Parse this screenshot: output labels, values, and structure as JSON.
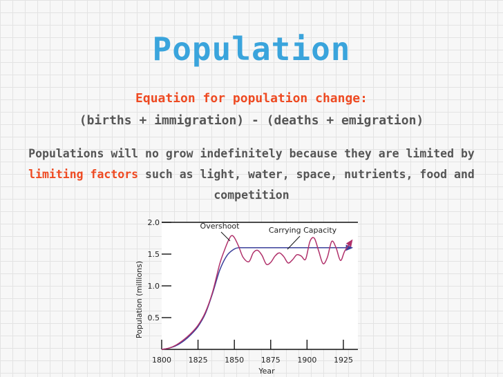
{
  "slide": {
    "title": "Population",
    "equation_heading": "Equation for population change:",
    "equation": "(births + immigration) - (deaths + emigration)",
    "paragraph_pre": "Populations will no grow indefinitely because they are limited by ",
    "paragraph_highlight": "limiting factors",
    "paragraph_post": " such as light, water, space, nutrients, food and competition"
  },
  "colors": {
    "title": "#3aa4dc",
    "highlight": "#ee4a22",
    "body_text": "#555555",
    "population_series": "#b0306a",
    "carrying_capacity_series": "#3a3f9a"
  },
  "chart_data": {
    "type": "line",
    "xlabel": "Year",
    "ylabel": "Population (millions)",
    "xlim": [
      1800,
      1935
    ],
    "ylim": [
      0,
      2.0
    ],
    "xticks": [
      "1800",
      "1825",
      "1850",
      "1875",
      "1900",
      "1925"
    ],
    "yticks": [
      "0.5",
      "1.0",
      "1.5",
      "2.0"
    ],
    "annotations": [
      "Overshoot",
      "Carrying Capacity"
    ],
    "series": [
      {
        "id": "population",
        "x": [
          1800,
          1805,
          1810,
          1815,
          1820,
          1825,
          1830,
          1835,
          1840,
          1843,
          1846,
          1848,
          1850,
          1853,
          1856,
          1860,
          1863,
          1866,
          1869,
          1872,
          1875,
          1878,
          1881,
          1884,
          1887,
          1890,
          1893,
          1896,
          1899,
          1902,
          1905,
          1908,
          1911,
          1914,
          1917,
          1920,
          1923,
          1926,
          1931
        ],
        "values": [
          0.0,
          0.02,
          0.07,
          0.15,
          0.25,
          0.38,
          0.58,
          0.9,
          1.35,
          1.55,
          1.72,
          1.79,
          1.76,
          1.62,
          1.45,
          1.38,
          1.52,
          1.56,
          1.48,
          1.34,
          1.37,
          1.47,
          1.52,
          1.46,
          1.36,
          1.41,
          1.49,
          1.47,
          1.42,
          1.7,
          1.75,
          1.55,
          1.35,
          1.45,
          1.7,
          1.6,
          1.4,
          1.55,
          1.72
        ]
      },
      {
        "id": "carrying_capacity",
        "x": [
          1800,
          1805,
          1810,
          1815,
          1820,
          1825,
          1830,
          1835,
          1840,
          1845,
          1850,
          1853,
          1856,
          1860,
          1870,
          1880,
          1890,
          1900,
          1910,
          1920,
          1931
        ],
        "values": [
          0.0,
          0.02,
          0.06,
          0.13,
          0.23,
          0.36,
          0.56,
          0.88,
          1.25,
          1.48,
          1.58,
          1.6,
          1.6,
          1.6,
          1.6,
          1.6,
          1.6,
          1.6,
          1.6,
          1.6,
          1.6
        ]
      }
    ]
  }
}
